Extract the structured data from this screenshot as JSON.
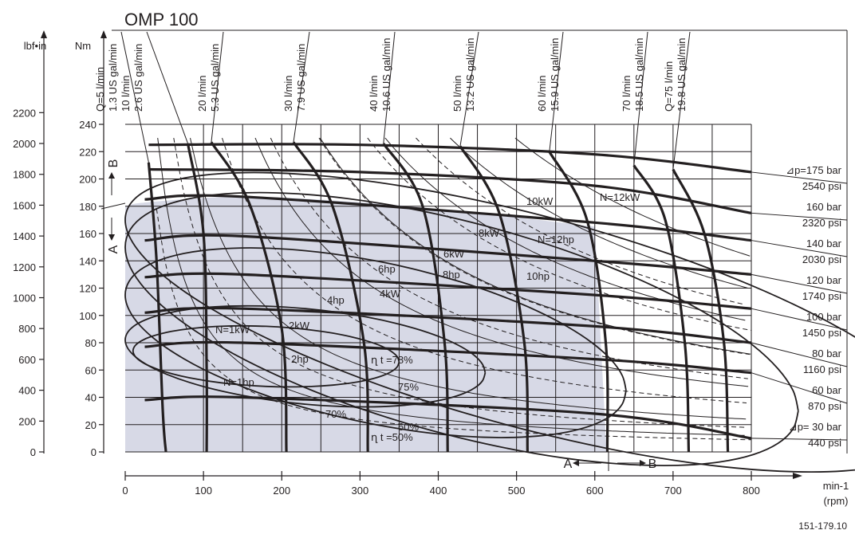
{
  "title": "OMP 100",
  "figure_code": "151-179.10",
  "colors": {
    "ink": "#231f20",
    "region": "#d7d9e6"
  },
  "chart_data": {
    "type": "line",
    "title": "OMP 100",
    "xlabel": "min-1",
    "xlabel2": "(rpm)",
    "ylabel": "Nm",
    "ylabel_alt": "lbf•in",
    "xlim": [
      0,
      800
    ],
    "ylim": [
      0,
      240
    ],
    "x_ticks": [
      0,
      100,
      200,
      300,
      400,
      500,
      600,
      700,
      800
    ],
    "y_ticks": [
      0,
      20,
      40,
      60,
      80,
      100,
      120,
      140,
      160,
      180,
      200,
      220,
      240
    ],
    "y_alt_ticks": [
      "0",
      "200",
      "400",
      "600",
      "800",
      "1000",
      "1200",
      "1400",
      "1600",
      "1800",
      "2000",
      "2200"
    ],
    "direction_labels": {
      "left": "A",
      "right": "B",
      "vertical_top": "B",
      "vertical_bottom": "A"
    },
    "flow_lines": [
      {
        "l_min": "Q=5 l/min",
        "us": "1.3 US gal/min",
        "points": [
          [
            30,
            212
          ],
          [
            40,
            140
          ],
          [
            48,
            30
          ],
          [
            52,
            0
          ]
        ]
      },
      {
        "l_min": "10 l/min",
        "us": "2.6 US gal/min",
        "points": [
          [
            80,
            226
          ],
          [
            100,
            160
          ],
          [
            104,
            60
          ],
          [
            104,
            0
          ]
        ]
      },
      {
        "l_min": "20 l/min",
        "us": "5.3 US gal/min",
        "points": [
          [
            110,
            227
          ],
          [
            160,
            180
          ],
          [
            200,
            90
          ],
          [
            206,
            0
          ]
        ]
      },
      {
        "l_min": "30 l/min",
        "us": "7.9 US gal/min",
        "points": [
          [
            215,
            227
          ],
          [
            265,
            180
          ],
          [
            305,
            80
          ],
          [
            310,
            0
          ]
        ]
      },
      {
        "l_min": "40 l/min",
        "us": "10.6 US gal/min",
        "points": [
          [
            330,
            226
          ],
          [
            380,
            180
          ],
          [
            408,
            80
          ],
          [
            412,
            0
          ]
        ]
      },
      {
        "l_min": "50 l/min",
        "us": "13.2 US gal/min",
        "points": [
          [
            428,
            224
          ],
          [
            478,
            175
          ],
          [
            510,
            80
          ],
          [
            514,
            0
          ]
        ]
      },
      {
        "l_min": "60 l/min",
        "us": "15.9 US gal/min",
        "points": [
          [
            542,
            220
          ],
          [
            590,
            170
          ],
          [
            614,
            80
          ],
          [
            616,
            0
          ]
        ]
      },
      {
        "l_min": "70 l/min",
        "us": "18.5 US gal/min",
        "points": [
          [
            650,
            210
          ],
          [
            690,
            170
          ],
          [
            715,
            80
          ],
          [
            720,
            0
          ]
        ]
      },
      {
        "l_min": "Q=75 l/min",
        "us": "19.8 US gal/min",
        "points": [
          [
            700,
            207
          ],
          [
            740,
            160
          ],
          [
            765,
            80
          ],
          [
            770,
            0
          ]
        ]
      }
    ],
    "pressure_lines": [
      {
        "bar": "⊿p=175 bar",
        "psi": "2540 psi",
        "points": [
          [
            30,
            225
          ],
          [
            300,
            225
          ],
          [
            600,
            218
          ],
          [
            800,
            205
          ]
        ]
      },
      {
        "bar": "160 bar",
        "psi": "2320 psi",
        "points": [
          [
            30,
            207
          ],
          [
            300,
            205
          ],
          [
            600,
            195
          ],
          [
            800,
            175
          ]
        ]
      },
      {
        "bar": "140 bar",
        "psi": "2030 psi",
        "points": [
          [
            25,
            185
          ],
          [
            150,
            187
          ],
          [
            600,
            168
          ],
          [
            800,
            155
          ]
        ]
      },
      {
        "bar": "120 bar",
        "psi": "1740 psi",
        "points": [
          [
            25,
            155
          ],
          [
            150,
            158
          ],
          [
            600,
            140
          ],
          [
            800,
            130
          ]
        ]
      },
      {
        "bar": "100 bar",
        "psi": "1450 psi",
        "points": [
          [
            25,
            128
          ],
          [
            150,
            130
          ],
          [
            600,
            115
          ],
          [
            800,
            105
          ]
        ]
      },
      {
        "bar": "80 bar",
        "psi": "1160 psi",
        "points": [
          [
            25,
            102
          ],
          [
            150,
            105
          ],
          [
            600,
            92
          ],
          [
            800,
            80
          ]
        ]
      },
      {
        "bar": "60 bar",
        "psi": "870 psi",
        "points": [
          [
            25,
            77
          ],
          [
            150,
            80
          ],
          [
            600,
            68
          ],
          [
            800,
            58
          ]
        ]
      },
      {
        "bar": "⊿p= 30 bar",
        "psi": "440 psi",
        "points": [
          [
            25,
            38
          ],
          [
            150,
            40
          ],
          [
            600,
            28
          ],
          [
            800,
            10
          ]
        ]
      }
    ],
    "power_kw": [
      {
        "label": "N=1kW"
      },
      {
        "label": "2kW"
      },
      {
        "label": "4kW"
      },
      {
        "label": "6kW"
      },
      {
        "label": "8kW"
      },
      {
        "label": "10kW"
      },
      {
        "label": "N=12kW"
      }
    ],
    "power_hp": [
      {
        "label": "N=1hp"
      },
      {
        "label": "2hp"
      },
      {
        "label": "4hp"
      },
      {
        "label": "6hp"
      },
      {
        "label": "8hp"
      },
      {
        "label": "10hp"
      },
      {
        "label": "N=12hp"
      }
    ],
    "efficiency_labels": [
      "ղ t =78%",
      "75%",
      "70%",
      "60%",
      "ղ t =50%"
    ]
  }
}
